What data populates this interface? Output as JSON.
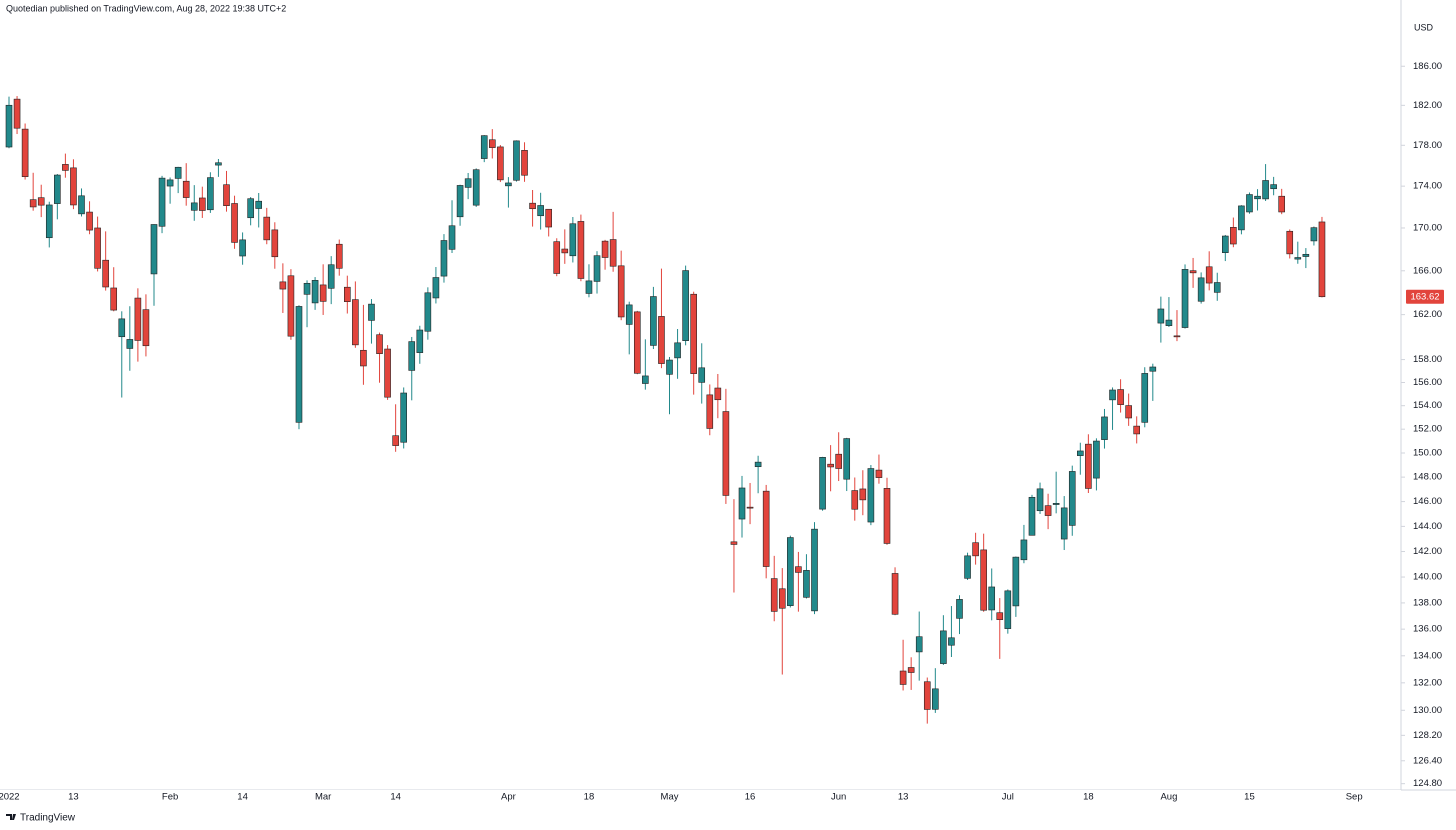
{
  "header": {
    "publisher": "Quotedian published on TradingView.com, Aug 28, 2022 19:38 UTC+2"
  },
  "footer": {
    "brand": "TradingView"
  },
  "chart_data": {
    "type": "candlestick",
    "y_axis_label": "USD",
    "log_scale": true,
    "grid": false,
    "up_color": "#22898b",
    "down_color": "#e2443c",
    "ylim": [
      124.5,
      190
    ],
    "yticks": [
      {
        "value": 124.8,
        "label": "124.80"
      },
      {
        "value": 126.4,
        "label": "126.40"
      },
      {
        "value": 128.2,
        "label": "128.20"
      },
      {
        "value": 130,
        "label": "130.00"
      },
      {
        "value": 132,
        "label": "132.00"
      },
      {
        "value": 134,
        "label": "134.00"
      },
      {
        "value": 136,
        "label": "136.00"
      },
      {
        "value": 138,
        "label": "138.00"
      },
      {
        "value": 140,
        "label": "140.00"
      },
      {
        "value": 142,
        "label": "142.00"
      },
      {
        "value": 144,
        "label": "144.00"
      },
      {
        "value": 146,
        "label": "146.00"
      },
      {
        "value": 148,
        "label": "148.00"
      },
      {
        "value": 150,
        "label": "150.00"
      },
      {
        "value": 152,
        "label": "152.00"
      },
      {
        "value": 154,
        "label": "154.00"
      },
      {
        "value": 156,
        "label": "156.00"
      },
      {
        "value": 158,
        "label": "158.00"
      },
      {
        "value": 162,
        "label": "162.00"
      },
      {
        "value": 166,
        "label": "166.00"
      },
      {
        "value": 170,
        "label": "170.00"
      },
      {
        "value": 174,
        "label": "174.00"
      },
      {
        "value": 178,
        "label": "178.00"
      },
      {
        "value": 182,
        "label": "182.00"
      },
      {
        "value": 186,
        "label": "186.00"
      }
    ],
    "categories": [
      "2022",
      null,
      null,
      null,
      null,
      null,
      null,
      null,
      "13",
      null,
      null,
      null,
      null,
      null,
      null,
      null,
      null,
      null,
      null,
      null,
      "Feb",
      null,
      null,
      null,
      null,
      null,
      null,
      null,
      null,
      "14",
      null,
      null,
      null,
      null,
      null,
      null,
      null,
      null,
      null,
      "Mar",
      null,
      null,
      null,
      null,
      null,
      null,
      null,
      null,
      "14",
      null,
      null,
      null,
      null,
      null,
      null,
      null,
      null,
      null,
      null,
      null,
      null,
      null,
      "Apr",
      null,
      null,
      null,
      null,
      null,
      null,
      null,
      null,
      null,
      "18",
      null,
      null,
      null,
      null,
      null,
      null,
      null,
      null,
      null,
      "May",
      null,
      null,
      null,
      null,
      null,
      null,
      null,
      null,
      null,
      "16",
      null,
      null,
      null,
      null,
      null,
      null,
      null,
      null,
      null,
      null,
      "Jun",
      null,
      null,
      null,
      null,
      null,
      null,
      null,
      "13",
      null,
      null,
      null,
      null,
      null,
      null,
      null,
      null,
      null,
      null,
      null,
      null,
      "Jul",
      null,
      null,
      null,
      null,
      null,
      null,
      null,
      null,
      null,
      "18",
      null,
      null,
      null,
      null,
      null,
      null,
      null,
      null,
      null,
      "Aug",
      null,
      null,
      null,
      null,
      null,
      null,
      null,
      null,
      null,
      "15",
      null,
      null,
      null,
      null,
      null,
      null,
      null,
      null,
      null,
      null,
      null,
      null,
      "Sep"
    ],
    "open": [
      177.83,
      182.63,
      179.61,
      172.7,
      172.89,
      169.08,
      172.32,
      176.12,
      175.78,
      171.34,
      171.51,
      170.0,
      166.98,
      164.42,
      160.02,
      158.98,
      163.5,
      162.45,
      165.71,
      170.16,
      174.01,
      174.75,
      174.48,
      171.68,
      172.86,
      171.73,
      176.05,
      174.14,
      172.33,
      167.37,
      170.97,
      171.85,
      171.03,
      169.82,
      164.98,
      165.54,
      152.58,
      163.84,
      163.06,
      164.7,
      164.39,
      168.47,
      164.49,
      163.36,
      158.82,
      161.48,
      160.2,
      158.93,
      151.45,
      150.9,
      157.05,
      158.61,
      160.51,
      163.51,
      165.51,
      167.99,
      171.06,
      173.88,
      172.17,
      176.69,
      178.55,
      177.84,
      174.03,
      174.57,
      177.5,
      172.36,
      171.16,
      171.78,
      168.71,
      168.02,
      167.39,
      170.62,
      163.92,
      165.02,
      168.76,
      168.91,
      166.46,
      161.12,
      162.25,
      155.91,
      159.25,
      161.84,
      156.71,
      158.15,
      159.67,
      163.85,
      156.01,
      154.93,
      155.52,
      153.5,
      142.77,
      144.59,
      145.55,
      148.86,
      146.85,
      139.88,
      139.09,
      137.79,
      140.81,
      138.43,
      137.39,
      145.39,
      149.07,
      149.9,
      147.83,
      146.9,
      147.03,
      144.35,
      148.58,
      147.08,
      140.28,
      132.87,
      133.13,
      134.29,
      132.08,
      130.07,
      133.42,
      134.79,
      136.82,
      139.9,
      142.7,
      142.13,
      137.46,
      137.25,
      136.04,
      137.77,
      141.35,
      143.29,
      145.26,
      145.67,
      145.76,
      142.99,
      144.08,
      149.78,
      150.74,
      147.92,
      151.12,
      154.5,
      155.39,
      154.01,
      152.26,
      152.58,
      156.98,
      161.24,
      161.01,
      160.1,
      160.84,
      166.01,
      163.21,
      166.37,
      164.02,
      167.68,
      170.06,
      169.82,
      171.52,
      172.78,
      172.77,
      173.75,
      173.03,
      169.69,
      167.08,
      167.32,
      168.78,
      170.57,
      null,
      null,
      null,
      null
    ],
    "high": [
      182.88,
      182.94,
      180.17,
      175.3,
      174.14,
      172.5,
      175.18,
      177.18,
      176.62,
      173.78,
      172.54,
      171.08,
      169.68,
      166.33,
      162.3,
      162.76,
      164.39,
      163.84,
      170.35,
      175.0,
      174.84,
      175.88,
      176.24,
      174.1,
      173.95,
      175.35,
      176.65,
      175.48,
      173.08,
      169.58,
      172.95,
      173.34,
      171.91,
      170.54,
      166.69,
      166.15,
      162.85,
      165.12,
      165.42,
      166.6,
      167.36,
      168.91,
      165.55,
      165.02,
      162.88,
      163.41,
      160.39,
      159.28,
      154.12,
      155.57,
      160.0,
      161.0,
      164.48,
      166.35,
      169.42,
      172.64,
      174.14,
      175.28,
      175.73,
      179.01,
      179.61,
      178.03,
      174.88,
      178.49,
      178.3,
      173.63,
      173.36,
      171.78,
      169.03,
      169.87,
      171.04,
      171.27,
      166.6,
      167.82,
      168.88,
      171.53,
      167.87,
      163.17,
      162.34,
      159.79,
      164.52,
      166.2,
      158.23,
      160.71,
      166.48,
      164.08,
      159.44,
      155.83,
      156.74,
      155.45,
      146.2,
      148.1,
      147.52,
      149.77,
      147.36,
      141.66,
      140.7,
      143.26,
      141.97,
      141.79,
      144.34,
      149.68,
      150.66,
      151.74,
      151.27,
      147.97,
      148.57,
      149.0,
      149.87,
      147.95,
      140.76,
      135.2,
      133.89,
      137.34,
      132.39,
      133.08,
      137.06,
      137.76,
      138.59,
      141.91,
      143.49,
      143.42,
      140.67,
      138.37,
      139.04,
      141.61,
      144.12,
      146.55,
      147.55,
      146.64,
      148.45,
      146.45,
      148.95,
      150.86,
      151.57,
      151.23,
      153.72,
      155.57,
      156.28,
      155.04,
      153.09,
      157.33,
      157.64,
      163.63,
      163.59,
      162.41,
      166.59,
      167.19,
      165.85,
      167.81,
      165.82,
      169.34,
      170.99,
      172.17,
      173.39,
      173.71,
      176.15,
      174.9,
      173.74,
      169.86,
      168.71,
      168.11,
      170.14,
      171.05,
      null,
      null,
      null,
      null
    ],
    "low": [
      177.71,
      179.12,
      174.64,
      171.64,
      171.03,
      168.17,
      170.82,
      174.82,
      171.79,
      171.09,
      169.41,
      165.94,
      164.18,
      162.3,
      154.7,
      157.02,
      157.82,
      158.28,
      162.8,
      169.51,
      172.31,
      173.33,
      172.12,
      170.68,
      170.95,
      171.43,
      174.9,
      171.55,
      168.04,
      166.56,
      170.25,
      170.05,
      168.47,
      166.19,
      162.15,
      159.75,
      152.0,
      160.87,
      162.43,
      161.97,
      162.95,
      165.55,
      162.1,
      159.04,
      155.8,
      159.41,
      155.98,
      154.5,
      150.1,
      150.38,
      154.46,
      157.63,
      159.76,
      163.01,
      164.91,
      167.65,
      170.21,
      172.75,
      172.0,
      176.34,
      176.7,
      174.4,
      171.94,
      174.44,
      174.42,
      170.13,
      169.85,
      169.2,
      165.5,
      166.64,
      166.77,
      165.04,
      163.57,
      163.91,
      166.1,
      165.91,
      161.5,
      158.46,
      156.72,
      155.38,
      158.93,
      157.25,
      153.27,
      156.32,
      159.26,
      154.95,
      154.18,
      151.49,
      152.93,
      145.81,
      138.8,
      143.11,
      144.18,
      146.68,
      139.9,
      136.6,
      132.61,
      137.65,
      137.33,
      138.34,
      137.14,
      145.26,
      146.84,
      147.68,
      146.86,
      144.46,
      144.9,
      144.1,
      147.46,
      142.53,
      137.06,
      131.44,
      131.48,
      132.16,
      129.04,
      129.81,
      133.32,
      133.91,
      135.63,
      139.77,
      140.97,
      137.32,
      136.67,
      133.77,
      135.66,
      136.93,
      141.08,
      143.28,
      145.0,
      143.78,
      145.05,
      142.12,
      143.25,
      148.2,
      146.7,
      146.91,
      150.37,
      151.94,
      153.41,
      152.28,
      150.8,
      152.16,
      154.41,
      159.5,
      160.89,
      159.63,
      160.75,
      164.43,
      163.0,
      164.2,
      163.25,
      166.9,
      168.19,
      169.4,
      171.35,
      171.66,
      172.57,
      173.12,
      171.31,
      167.14,
      166.65,
      166.25,
      168.35,
      163.56,
      null,
      null,
      null,
      null
    ],
    "close": [
      182.01,
      179.7,
      174.92,
      172.0,
      172.17,
      172.19,
      175.08,
      175.53,
      172.19,
      173.07,
      169.8,
      166.23,
      164.51,
      162.41,
      161.62,
      159.78,
      159.69,
      159.22,
      170.33,
      174.78,
      174.61,
      175.84,
      172.9,
      172.39,
      171.66,
      174.83,
      176.28,
      172.12,
      168.64,
      168.88,
      172.79,
      172.55,
      168.88,
      167.3,
      164.32,
      160.07,
      162.74,
      164.85,
      165.12,
      163.2,
      166.56,
      166.23,
      163.17,
      159.3,
      157.44,
      162.95,
      158.52,
      154.73,
      150.62,
      155.09,
      159.59,
      160.62,
      163.98,
      165.38,
      168.82,
      170.21,
      174.07,
      174.72,
      175.6,
      178.96,
      177.77,
      174.61,
      174.31,
      178.44,
      175.06,
      171.83,
      172.14,
      170.09,
      165.75,
      167.66,
      170.4,
      165.29,
      165.07,
      167.4,
      167.23,
      166.42,
      161.79,
      162.88,
      156.8,
      156.57,
      163.64,
      157.65,
      157.96,
      159.48,
      166.02,
      156.77,
      157.28,
      152.06,
      154.51,
      146.5,
      142.56,
      147.11,
      145.54,
      149.24,
      140.82,
      137.35,
      137.59,
      143.11,
      140.36,
      140.52,
      143.78,
      149.64,
      148.84,
      148.71,
      151.21,
      145.38,
      146.14,
      148.71,
      147.96,
      142.64,
      137.13,
      131.88,
      132.76,
      135.43,
      130.06,
      131.56,
      135.87,
      135.35,
      138.27,
      141.66,
      141.66,
      137.44,
      139.23,
      136.72,
      138.93,
      141.56,
      142.92,
      146.35,
      147.04,
      144.87,
      145.86,
      145.49,
      148.47,
      150.17,
      147.07,
      151.0,
      153.04,
      155.35,
      154.09,
      152.95,
      151.6,
      156.79,
      157.35,
      162.51,
      161.51,
      160.01,
      166.13,
      165.81,
      165.35,
      164.87,
      164.92,
      169.24,
      168.49,
      172.1,
      173.19,
      173.03,
      174.55,
      174.15,
      171.52,
      167.57,
      167.23,
      167.53,
      170.03,
      163.62,
      null,
      null,
      null,
      null
    ]
  }
}
